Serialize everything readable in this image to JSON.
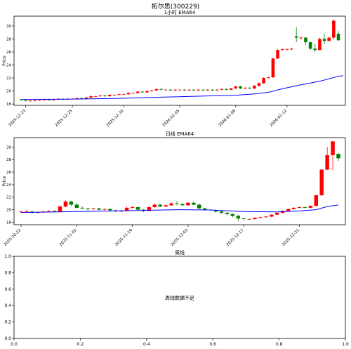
{
  "figure_title": "拓尔思(300229)",
  "colors": {
    "up": "#ff0000",
    "down": "#008000",
    "ema": "#0000ff",
    "axis": "#000000"
  },
  "chart_data": [
    {
      "type": "candlestick",
      "title": "1小时 EMA64",
      "ylabel": "Price",
      "ylim": [
        17.8,
        31.5
      ],
      "yticks": [
        18,
        20,
        22,
        24,
        26,
        28,
        30
      ],
      "xticks": [
        "2025-12-23",
        "2025-12-25",
        "2025-12-30",
        "2026-01-05",
        "2026-01-08",
        "2026-01-12"
      ],
      "xtick_index": [
        1,
        11,
        22,
        34,
        46,
        57
      ],
      "candles": [
        [
          18.7,
          18.6,
          18.8,
          18.5
        ],
        [
          18.6,
          18.5,
          18.7,
          18.4
        ],
        [
          18.5,
          18.5,
          18.6,
          18.4
        ],
        [
          18.5,
          18.6,
          18.7,
          18.4
        ],
        [
          18.6,
          18.6,
          18.7,
          18.5
        ],
        [
          18.6,
          18.7,
          18.8,
          18.5
        ],
        [
          18.7,
          18.6,
          18.8,
          18.5
        ],
        [
          18.6,
          18.7,
          18.8,
          18.5
        ],
        [
          18.7,
          18.8,
          18.9,
          18.6
        ],
        [
          18.8,
          18.7,
          18.9,
          18.6
        ],
        [
          18.7,
          18.8,
          18.9,
          18.6
        ],
        [
          18.8,
          18.8,
          18.9,
          18.7
        ],
        [
          18.8,
          18.9,
          19.0,
          18.7
        ],
        [
          18.9,
          18.8,
          19.0,
          18.7
        ],
        [
          18.8,
          19.0,
          19.1,
          18.7
        ],
        [
          19.0,
          19.2,
          19.3,
          18.9
        ],
        [
          19.2,
          19.2,
          19.3,
          19.1
        ],
        [
          19.2,
          19.3,
          19.4,
          19.1
        ],
        [
          19.3,
          19.2,
          19.4,
          19.1
        ],
        [
          19.2,
          19.4,
          19.5,
          19.1
        ],
        [
          19.4,
          19.4,
          19.5,
          19.3
        ],
        [
          19.4,
          19.5,
          19.6,
          19.3
        ],
        [
          19.5,
          19.5,
          19.6,
          19.4
        ],
        [
          19.5,
          19.7,
          19.8,
          19.4
        ],
        [
          19.7,
          19.7,
          19.8,
          19.6
        ],
        [
          19.7,
          19.9,
          20.0,
          19.6
        ],
        [
          19.9,
          19.8,
          20.0,
          19.7
        ],
        [
          19.8,
          20.0,
          20.1,
          19.7
        ],
        [
          20.0,
          20.1,
          20.2,
          19.9
        ],
        [
          20.1,
          20.3,
          20.4,
          20.0
        ],
        [
          20.3,
          20.2,
          20.4,
          20.1
        ],
        [
          20.2,
          20.2,
          20.3,
          20.1
        ],
        [
          20.2,
          20.1,
          20.3,
          20.0
        ],
        [
          20.1,
          20.2,
          20.3,
          20.0
        ],
        [
          20.2,
          20.2,
          20.3,
          20.1
        ],
        [
          20.2,
          20.1,
          20.3,
          20.0
        ],
        [
          20.1,
          20.2,
          20.3,
          20.0
        ],
        [
          20.2,
          20.1,
          20.3,
          20.0
        ],
        [
          20.1,
          20.2,
          20.3,
          20.0
        ],
        [
          20.2,
          20.1,
          20.3,
          20.0
        ],
        [
          20.1,
          20.2,
          20.3,
          20.0
        ],
        [
          20.2,
          20.1,
          20.3,
          20.0
        ],
        [
          20.1,
          20.2,
          20.3,
          20.0
        ],
        [
          20.2,
          20.3,
          20.4,
          20.1
        ],
        [
          20.3,
          20.2,
          20.4,
          20.1
        ],
        [
          20.2,
          20.4,
          20.5,
          20.1
        ],
        [
          20.4,
          20.7,
          20.8,
          20.3
        ],
        [
          20.7,
          20.4,
          20.8,
          20.3
        ],
        [
          20.4,
          20.5,
          20.6,
          20.3
        ],
        [
          20.5,
          20.4,
          20.6,
          20.3
        ],
        [
          20.4,
          20.8,
          20.9,
          20.3
        ],
        [
          20.8,
          21.2,
          21.3,
          20.7
        ],
        [
          21.2,
          22.0,
          22.1,
          21.1
        ],
        [
          22.0,
          22.1,
          22.2,
          21.9
        ],
        [
          22.1,
          25.0,
          25.1,
          22.0
        ],
        [
          25.0,
          26.3,
          26.4,
          24.9
        ],
        [
          26.3,
          26.4,
          26.5,
          26.2
        ],
        [
          26.4,
          26.4,
          26.5,
          26.3
        ],
        [
          26.4,
          26.5,
          26.6,
          26.3
        ],
        [
          28.4,
          28.2,
          29.8,
          27.5
        ],
        [
          28.2,
          28.2,
          28.4,
          27.9
        ],
        [
          28.2,
          27.5,
          28.3,
          27.1
        ],
        [
          27.5,
          26.5,
          27.6,
          26.3
        ],
        [
          26.5,
          26.3,
          27.2,
          26.0
        ],
        [
          26.3,
          28.0,
          28.2,
          26.2
        ],
        [
          28.0,
          27.7,
          28.8,
          27.2
        ],
        [
          27.7,
          28.2,
          28.3,
          27.6
        ],
        [
          28.2,
          30.8,
          31.0,
          27.9
        ],
        [
          28.8,
          27.8,
          29.2,
          27.7
        ]
      ],
      "ema": [
        [
          0,
          18.7
        ],
        [
          10,
          18.75
        ],
        [
          20,
          18.85
        ],
        [
          30,
          19.05
        ],
        [
          40,
          19.25
        ],
        [
          46,
          19.35
        ],
        [
          50,
          19.55
        ],
        [
          53,
          19.8
        ],
        [
          56,
          20.35
        ],
        [
          60,
          20.95
        ],
        [
          64,
          21.5
        ],
        [
          68,
          22.25
        ],
        [
          69,
          22.35
        ]
      ]
    },
    {
      "type": "candlestick",
      "title": "日线 EMA64",
      "ylabel": "Price",
      "ylim": [
        17.6,
        31.5
      ],
      "yticks": [
        18,
        20,
        22,
        24,
        26,
        28,
        30
      ],
      "xticks": [
        "2025-10-22",
        "2025-11-05",
        "2025-11-19",
        "2025-12-03",
        "2025-12-17",
        "2025-12-31"
      ],
      "xtick_index": [
        0,
        10,
        20,
        30,
        40,
        50
      ],
      "candles": [
        [
          19.6,
          19.7,
          19.8,
          19.5
        ],
        [
          19.7,
          19.7,
          20.0,
          19.5
        ],
        [
          19.7,
          19.5,
          19.8,
          19.4
        ],
        [
          19.5,
          19.6,
          19.7,
          19.4
        ],
        [
          19.6,
          19.7,
          19.8,
          19.5
        ],
        [
          19.7,
          19.8,
          19.9,
          19.6
        ],
        [
          19.8,
          19.7,
          19.9,
          19.6
        ],
        [
          19.7,
          20.5,
          20.7,
          19.6
        ],
        [
          20.5,
          21.3,
          21.5,
          20.4
        ],
        [
          21.3,
          20.8,
          21.4,
          20.6
        ],
        [
          20.8,
          20.3,
          21.0,
          20.2
        ],
        [
          20.3,
          20.2,
          20.5,
          20.1
        ],
        [
          20.2,
          20.1,
          20.3,
          19.8
        ],
        [
          20.1,
          20.2,
          20.3,
          20.0
        ],
        [
          20.2,
          20.0,
          20.3,
          19.9
        ],
        [
          20.0,
          20.1,
          20.2,
          19.9
        ],
        [
          20.1,
          19.9,
          20.2,
          19.7
        ],
        [
          19.9,
          19.8,
          20.0,
          19.6
        ],
        [
          19.8,
          19.8,
          19.9,
          19.6
        ],
        [
          19.8,
          20.3,
          20.5,
          19.7
        ],
        [
          20.3,
          20.4,
          20.6,
          20.2
        ],
        [
          20.4,
          20.0,
          20.5,
          19.8
        ],
        [
          20.0,
          19.8,
          20.1,
          19.6
        ],
        [
          19.8,
          20.4,
          20.5,
          19.7
        ],
        [
          20.4,
          20.8,
          21.0,
          20.3
        ],
        [
          20.8,
          20.5,
          20.9,
          20.4
        ],
        [
          20.5,
          20.7,
          20.8,
          20.4
        ],
        [
          20.7,
          21.0,
          21.2,
          20.6
        ],
        [
          21.0,
          20.9,
          21.4,
          20.7
        ],
        [
          20.9,
          20.7,
          21.0,
          20.6
        ],
        [
          20.7,
          21.1,
          21.2,
          20.6
        ],
        [
          21.1,
          20.8,
          21.3,
          20.7
        ],
        [
          20.8,
          20.2,
          21.0,
          20.1
        ],
        [
          20.2,
          20.0,
          20.3,
          19.9
        ],
        [
          20.0,
          19.9,
          20.1,
          19.8
        ],
        [
          19.9,
          19.7,
          20.0,
          19.5
        ],
        [
          19.7,
          19.5,
          19.8,
          19.4
        ],
        [
          19.5,
          19.3,
          19.6,
          19.1
        ],
        [
          19.3,
          19.0,
          19.4,
          18.8
        ],
        [
          19.0,
          18.6,
          19.2,
          18.2
        ],
        [
          18.6,
          18.5,
          18.7,
          18.3
        ],
        [
          18.5,
          18.5,
          18.6,
          18.4
        ],
        [
          18.5,
          18.7,
          18.8,
          18.4
        ],
        [
          18.7,
          18.8,
          18.9,
          18.6
        ],
        [
          18.8,
          18.9,
          19.0,
          18.7
        ],
        [
          18.9,
          19.2,
          19.3,
          18.8
        ],
        [
          19.2,
          19.5,
          19.6,
          19.1
        ],
        [
          19.5,
          19.8,
          19.9,
          19.4
        ],
        [
          19.8,
          20.1,
          20.2,
          19.7
        ],
        [
          20.1,
          20.3,
          20.4,
          20.0
        ],
        [
          20.3,
          20.4,
          20.5,
          20.2
        ],
        [
          20.4,
          20.3,
          20.5,
          20.2
        ],
        [
          20.3,
          20.6,
          20.7,
          20.2
        ],
        [
          20.6,
          22.3,
          22.4,
          20.5
        ],
        [
          22.3,
          26.4,
          26.5,
          22.2
        ],
        [
          26.4,
          28.7,
          30.0,
          26.3
        ],
        [
          28.7,
          30.9,
          31.0,
          26.3
        ],
        [
          28.9,
          28.2,
          29.0,
          27.8
        ]
      ],
      "ema": [
        [
          0,
          19.55
        ],
        [
          10,
          19.7
        ],
        [
          20,
          19.85
        ],
        [
          28,
          20.0
        ],
        [
          34,
          19.95
        ],
        [
          40,
          19.7
        ],
        [
          46,
          19.65
        ],
        [
          50,
          19.8
        ],
        [
          53,
          20.0
        ],
        [
          55,
          20.5
        ],
        [
          57,
          20.75
        ]
      ]
    },
    {
      "type": "placeholder",
      "title": "周线",
      "message": "周线数据不足",
      "xlim": [
        0.0,
        1.0
      ],
      "ylim": [
        0.0,
        1.0
      ],
      "xticks": [
        "0.0",
        "0.2",
        "0.4",
        "0.6",
        "0.8",
        "1.0"
      ],
      "yticks": [
        "0.0",
        "0.2",
        "0.4",
        "0.6",
        "0.8",
        "1.0"
      ]
    }
  ]
}
